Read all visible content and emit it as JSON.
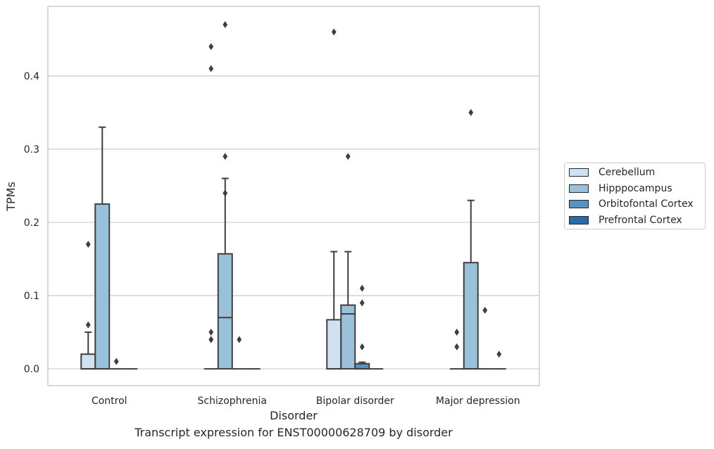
{
  "caption": "Transcript expression for ENST00000628709 by disorder",
  "chart_data": {
    "type": "box",
    "xlabel": "Disorder",
    "ylabel": "TPMs",
    "ylim": [
      -0.023,
      0.495
    ],
    "yticks": [
      0.0,
      0.1,
      0.2,
      0.3,
      0.4
    ],
    "ytick_labels": [
      "0.0",
      "0.1",
      "0.2",
      "0.3",
      "0.4"
    ],
    "grid": "horizontal",
    "legend_position": "right",
    "categories": [
      "Control",
      "Schizophrenia",
      "Bipolar disorder",
      "Major depression"
    ],
    "series": [
      {
        "name": "Cerebellum",
        "color": "#d0e1f2",
        "boxes": [
          {
            "q1": 0.0,
            "median": 0.0,
            "q3": 0.02,
            "whisker_low": 0.0,
            "whisker_high": 0.05,
            "outliers": [
              0.06,
              0.17
            ]
          },
          {
            "q1": 0.0,
            "median": 0.0,
            "q3": 0.0,
            "whisker_low": 0.0,
            "whisker_high": 0.0,
            "outliers": [
              0.04,
              0.04,
              0.05,
              0.41,
              0.44
            ]
          },
          {
            "q1": 0.0,
            "median": 0.0,
            "q3": 0.067,
            "whisker_low": 0.0,
            "whisker_high": 0.16,
            "outliers": [
              0.46
            ]
          },
          {
            "q1": 0.0,
            "median": 0.0,
            "q3": 0.0,
            "whisker_low": 0.0,
            "whisker_high": 0.0,
            "outliers": [
              0.03,
              0.05
            ]
          }
        ]
      },
      {
        "name": "Hipppocampus",
        "color": "#9ac1da",
        "boxes": [
          {
            "q1": 0.0,
            "median": 0.0,
            "q3": 0.225,
            "whisker_low": 0.0,
            "whisker_high": 0.33,
            "outliers": []
          },
          {
            "q1": 0.0,
            "median": 0.07,
            "q3": 0.157,
            "whisker_low": 0.0,
            "whisker_high": 0.26,
            "outliers": [
              0.24,
              0.29,
              0.47
            ]
          },
          {
            "q1": 0.0,
            "median": 0.075,
            "q3": 0.087,
            "whisker_low": 0.0,
            "whisker_high": 0.16,
            "outliers": [
              0.29
            ]
          },
          {
            "q1": 0.0,
            "median": 0.0,
            "q3": 0.145,
            "whisker_low": 0.0,
            "whisker_high": 0.23,
            "outliers": [
              0.35
            ]
          }
        ]
      },
      {
        "name": "Orbitofontal Cortex",
        "color": "#5693be",
        "boxes": [
          {
            "q1": 0.0,
            "median": 0.0,
            "q3": 0.0,
            "whisker_low": 0.0,
            "whisker_high": 0.0,
            "outliers": [
              0.01
            ]
          },
          {
            "q1": 0.0,
            "median": 0.0,
            "q3": 0.0,
            "whisker_low": 0.0,
            "whisker_high": 0.0,
            "outliers": [
              0.04
            ]
          },
          {
            "q1": 0.0,
            "median": 0.0,
            "q3": 0.007,
            "whisker_low": 0.0,
            "whisker_high": 0.009,
            "outliers": [
              0.03,
              0.09,
              0.11
            ]
          },
          {
            "q1": 0.0,
            "median": 0.0,
            "q3": 0.0,
            "whisker_low": 0.0,
            "whisker_high": 0.0,
            "outliers": [
              0.08
            ]
          }
        ]
      },
      {
        "name": "Prefrontal Cortex",
        "color": "#2c69a8",
        "boxes": [
          {
            "q1": 0.0,
            "median": 0.0,
            "q3": 0.0,
            "whisker_low": 0.0,
            "whisker_high": 0.0,
            "outliers": []
          },
          {
            "q1": 0.0,
            "median": 0.0,
            "q3": 0.0,
            "whisker_low": 0.0,
            "whisker_high": 0.0,
            "outliers": []
          },
          {
            "q1": 0.0,
            "median": 0.0,
            "q3": 0.0,
            "whisker_low": 0.0,
            "whisker_high": 0.0,
            "outliers": []
          },
          {
            "q1": 0.0,
            "median": 0.0,
            "q3": 0.0,
            "whisker_low": 0.0,
            "whisker_high": 0.0,
            "outliers": [
              0.02
            ]
          }
        ]
      }
    ]
  }
}
